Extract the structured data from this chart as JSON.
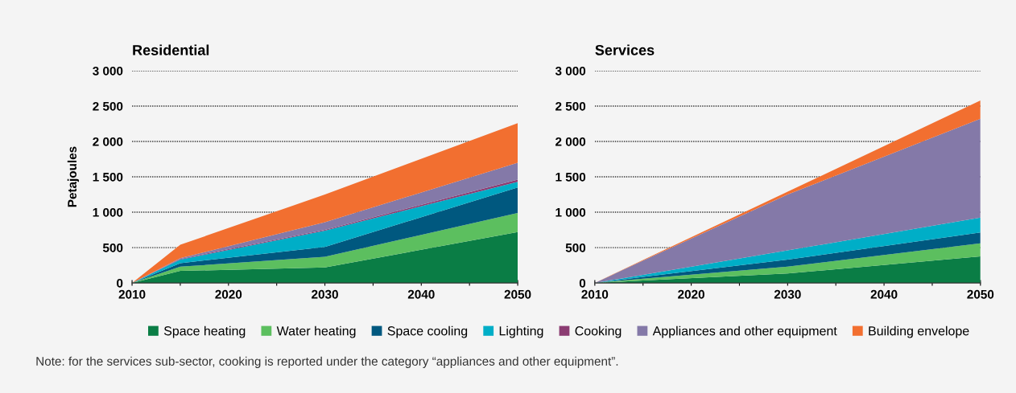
{
  "chart_data": [
    {
      "type": "area",
      "stacked": true,
      "title": "Residential",
      "ylabel": "Petajoules",
      "x": [
        2010,
        2015,
        2030,
        2050
      ],
      "series": [
        {
          "name": "Space heating",
          "color": "#0a7d45",
          "values": [
            0,
            170,
            220,
            720
          ]
        },
        {
          "name": "Water heating",
          "color": "#5cbf5f",
          "values": [
            0,
            60,
            150,
            270
          ]
        },
        {
          "name": "Space cooling",
          "color": "#00587f",
          "values": [
            0,
            50,
            140,
            360
          ]
        },
        {
          "name": "Lighting",
          "color": "#00aec7",
          "values": [
            0,
            50,
            230,
            80
          ]
        },
        {
          "name": "Cooking",
          "color": "#8b3c72",
          "values": [
            0,
            10,
            10,
            30
          ]
        },
        {
          "name": "Appliances and other equipment",
          "color": "#8479a8",
          "values": [
            0,
            10,
            110,
            240
          ]
        },
        {
          "name": "Building envelope",
          "color": "#f26f30",
          "values": [
            0,
            190,
            390,
            560
          ]
        }
      ],
      "xlim": [
        2010,
        2050
      ],
      "xticks": [
        2010,
        {
          "value": 2015,
          "label": null
        },
        2020,
        {
          "value": 2025,
          "label": null
        },
        2030,
        {
          "value": 2035,
          "label": null
        },
        2040,
        {
          "value": 2045,
          "label": null
        },
        2050
      ],
      "ylim": [
        0,
        3000
      ],
      "yticks": [
        0,
        500,
        {
          "value": 1000,
          "label": "1 000"
        },
        {
          "value": 1500,
          "label": "1 500"
        },
        {
          "value": 2000,
          "label": "2 000"
        },
        {
          "value": 2500,
          "label": "2 500"
        },
        {
          "value": 3000,
          "label": "3 000"
        }
      ],
      "grid": "y",
      "legend": "bottom",
      "annotations": [
        "Note: for the services sub-sector, cooking is reported under the category “appliances and other equipment”."
      ]
    },
    {
      "type": "area",
      "stacked": true,
      "title": "Services",
      "x": [
        2010,
        2015,
        2030,
        2050
      ],
      "series": [
        {
          "name": "Space heating",
          "color": "#0a7d45",
          "values": [
            0,
            35,
            135,
            375
          ]
        },
        {
          "name": "Water heating",
          "color": "#5cbf5f",
          "values": [
            0,
            25,
            95,
            185
          ]
        },
        {
          "name": "Space cooling",
          "color": "#00587f",
          "values": [
            0,
            25,
            100,
            155
          ]
        },
        {
          "name": "Lighting",
          "color": "#00aec7",
          "values": [
            0,
            30,
            130,
            210
          ]
        },
        {
          "name": "Appliances and other equipment",
          "color": "#8479a8",
          "values": [
            0,
            200,
            790,
            1395
          ]
        },
        {
          "name": "Building envelope",
          "color": "#f26f30",
          "values": [
            0,
            10,
            40,
            260
          ]
        }
      ],
      "xlim": [
        2010,
        2050
      ],
      "xticks": [
        2010,
        {
          "value": 2015,
          "label": null
        },
        2020,
        {
          "value": 2025,
          "label": null
        },
        2030,
        {
          "value": 2035,
          "label": null
        },
        2040,
        {
          "value": 2045,
          "label": null
        },
        2050
      ],
      "ylim": [
        0,
        3000
      ],
      "yticks": [
        0,
        500,
        {
          "value": 1000,
          "label": "1 000"
        },
        {
          "value": 1500,
          "label": "1 500"
        },
        {
          "value": 2000,
          "label": "2 000"
        },
        {
          "value": 2500,
          "label": "2 500"
        },
        {
          "value": 3000,
          "label": "3 000"
        }
      ],
      "grid": "y",
      "legend": "bottom"
    }
  ]
}
